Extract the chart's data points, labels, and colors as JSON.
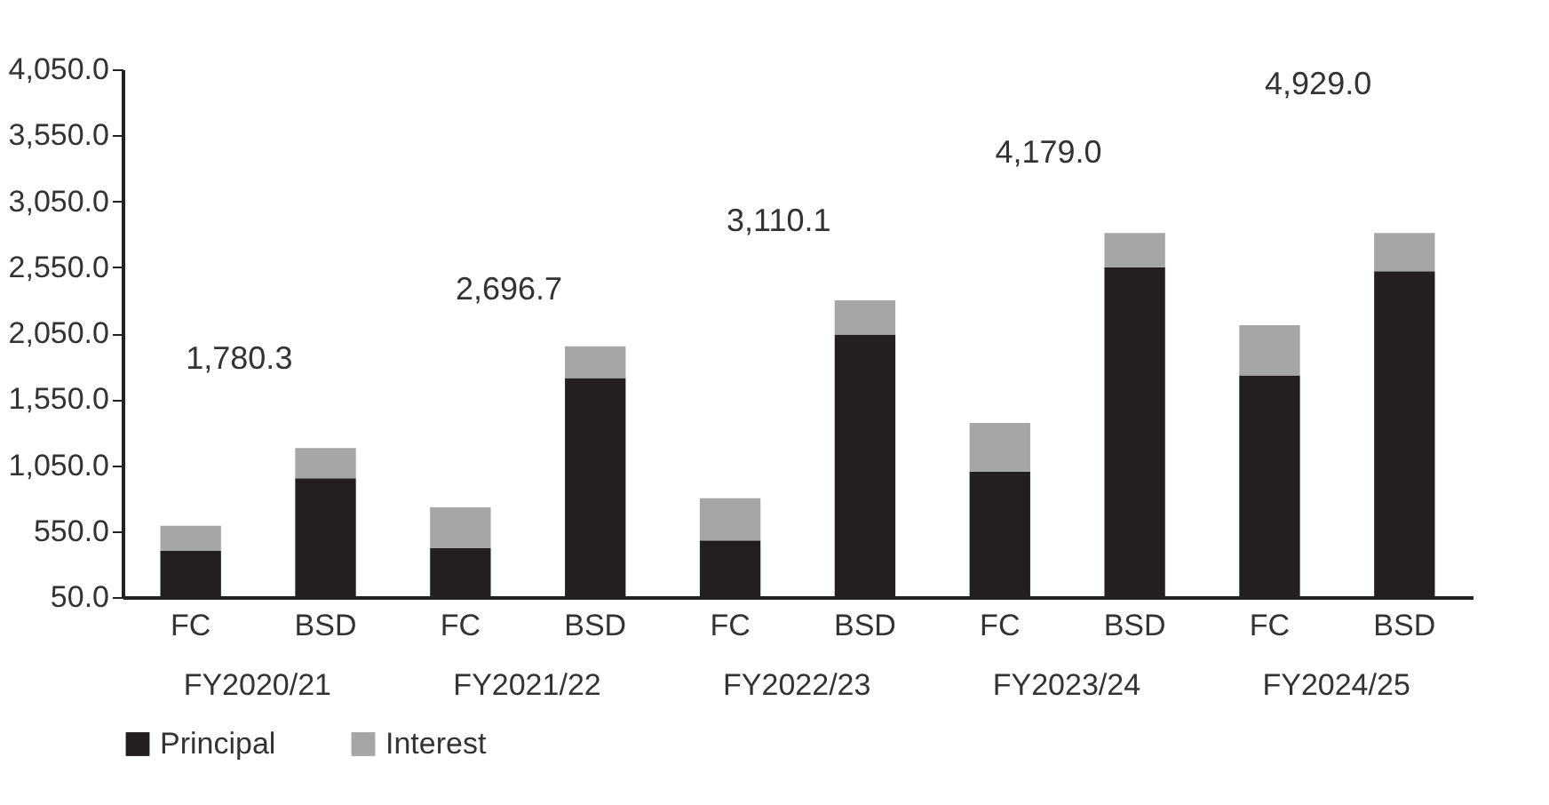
{
  "chart_data": {
    "type": "bar",
    "stacked": true,
    "categories": [
      "FC",
      "BSD",
      "FC",
      "BSD",
      "FC",
      "BSD",
      "FC",
      "BSD",
      "FC",
      "BSD"
    ],
    "series": [
      {
        "name": "Principal",
        "color": "#231f20",
        "values": [
          400,
          950,
          420,
          1710,
          480,
          2040,
          1000,
          2550,
          1730,
          2520
        ]
      },
      {
        "name": "Interest",
        "color": "#a7a6a6",
        "values": [
          190,
          230,
          310,
          240,
          320,
          260,
          370,
          260,
          380,
          290
        ]
      }
    ],
    "ylim": [
      50,
      4050
    ],
    "yticks": [
      {
        "value": 50,
        "label": "50.0"
      },
      {
        "value": 550,
        "label": "550.0"
      },
      {
        "value": 1050,
        "label": "1,050.0"
      },
      {
        "value": 1550,
        "label": "1,550.0"
      },
      {
        "value": 2050,
        "label": "2,050.0"
      },
      {
        "value": 2550,
        "label": "2,550.0"
      },
      {
        "value": 3050,
        "label": "3,050.0"
      },
      {
        "value": 3550,
        "label": "3,550.0"
      },
      {
        "value": 4050,
        "label": "4,050.0"
      }
    ],
    "annotations": [
      "1,780.3",
      "FY2020/21",
      "2,696.7",
      "FY2021/22",
      "3,110.1",
      "FY2022/23",
      "4,179.0",
      "FY2023/24",
      "4,929.0",
      "FY2024/25"
    ],
    "grid": false,
    "legend": "bottom"
  }
}
